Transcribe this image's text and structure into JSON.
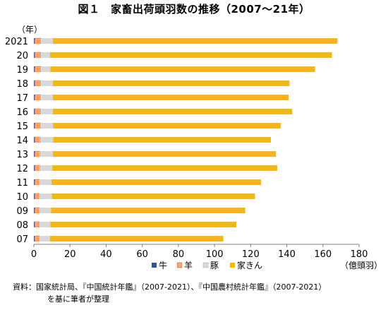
{
  "chart_data": {
    "type": "bar",
    "orientation": "horizontal",
    "stacked": true,
    "title": "図１　家畜出荷頭羽数の推移（2007～21年）",
    "ylabel": "（年）",
    "xlabel": "（億頭羽）",
    "categories": [
      "2021",
      "20",
      "19",
      "18",
      "17",
      "16",
      "15",
      "14",
      "13",
      "12",
      "11",
      "10",
      "09",
      "08",
      "07"
    ],
    "xlim": [
      0,
      180
    ],
    "xticks": [
      0,
      20,
      40,
      60,
      80,
      100,
      120,
      140,
      160,
      180
    ],
    "grid": false,
    "legend_position": "bottom",
    "series": [
      {
        "name": "牛",
        "color": "#2f5597",
        "pattern": "solid",
        "values": [
          0.5,
          0.5,
          0.5,
          0.5,
          0.5,
          0.5,
          0.5,
          0.5,
          0.5,
          0.5,
          0.5,
          0.5,
          0.5,
          0.5,
          0.5
        ]
      },
      {
        "name": "羊",
        "color": "#f4b183",
        "pattern": "dotted",
        "values": [
          3.3,
          3.2,
          3.2,
          3.1,
          3.1,
          3.1,
          3.0,
          2.9,
          2.8,
          2.8,
          2.7,
          2.7,
          2.7,
          2.6,
          2.6
        ]
      },
      {
        "name": "豚",
        "color": "#d9d9d9",
        "pattern": "solid",
        "values": [
          6.7,
          5.3,
          5.4,
          6.9,
          6.9,
          6.9,
          7.1,
          7.3,
          7.2,
          6.9,
          6.6,
          6.7,
          6.3,
          6.0,
          5.8
        ]
      },
      {
        "name": "家きん",
        "color": "#f2b71d",
        "pattern": "solid",
        "values": [
          157.5,
          156.0,
          146.5,
          131.0,
          130.5,
          132.5,
          126.0,
          120.5,
          123.5,
          124.5,
          116.0,
          112.5,
          107.5,
          103.0,
          96.0
        ]
      }
    ]
  },
  "source": {
    "line1": "資料：国家統計局、『中国統計年鑑』（2007-2021）、『中国農村統計年鑑』（2007-2021）",
    "line2": "を基に筆者が整理"
  }
}
